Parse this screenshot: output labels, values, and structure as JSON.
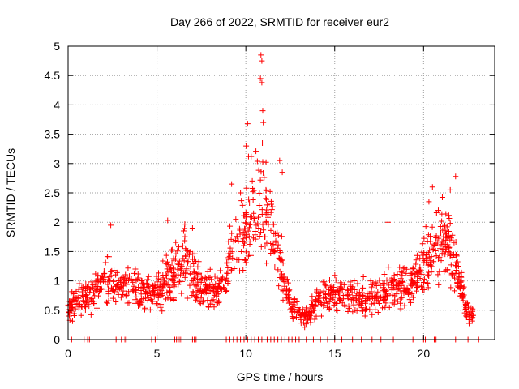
{
  "chart_data": {
    "type": "scatter",
    "title": "Day 266 of 2022, SRMTID for receiver eur2",
    "xlabel": "GPS time / hours",
    "ylabel": "SRMTID / TECUs",
    "xlim": [
      0,
      24
    ],
    "ylim": [
      0,
      5
    ],
    "grid": true,
    "marker": "+",
    "colors": {
      "series": "#ff0000",
      "grid": "#a0a0a0",
      "axis": "#000000"
    },
    "x_ticks": [
      0,
      5,
      10,
      15,
      20
    ],
    "x_tick_labels": [
      "0",
      "5",
      "10",
      "15",
      "20"
    ],
    "y_ticks": [
      0,
      0.5,
      1,
      1.5,
      2,
      2.5,
      3,
      3.5,
      4,
      4.5,
      5
    ],
    "y_tick_labels": [
      "0",
      "0.5",
      "1",
      "1.5",
      "2",
      "2.5",
      "3",
      "3.5",
      "4",
      "4.5",
      "5"
    ],
    "baseline": {
      "x": [
        0.2,
        0.9,
        1.1,
        1.2,
        2.7,
        3.0,
        3.2,
        3.3,
        4.7,
        4.9,
        6.0,
        6.1,
        6.2,
        6.3,
        6.4,
        7.0,
        7.1,
        7.2,
        8.9,
        9.1,
        9.3,
        9.5,
        9.7,
        9.9,
        10.1,
        10.3,
        10.5,
        10.7,
        10.9,
        11.2,
        11.4,
        11.6,
        11.8,
        12.0,
        12.2,
        12.4,
        12.6,
        12.8,
        13.0,
        13.4,
        13.8,
        14.2,
        14.6,
        15.0,
        15.4,
        16.0,
        16.5,
        17.1,
        17.6,
        18.3,
        19.4,
        20.0,
        20.1,
        20.6,
        20.7,
        21.8,
        22.5,
        23.1
      ],
      "y": [
        0,
        0,
        0,
        0,
        0,
        0,
        0,
        0,
        0,
        0,
        0,
        0,
        0,
        0,
        0,
        0,
        0,
        0,
        0,
        0,
        0,
        0,
        0,
        0,
        0,
        0,
        0,
        0,
        0,
        0,
        0,
        0,
        0,
        0,
        0,
        0,
        0,
        0,
        0,
        0,
        0,
        0,
        0,
        0,
        0,
        0,
        0,
        0,
        0,
        0,
        0,
        0,
        0,
        0,
        0,
        0,
        0,
        0
      ]
    },
    "series": [
      {
        "name": "SRMTID eur2",
        "profile_x": [
          0,
          0.5,
          1,
          1.5,
          2,
          2.5,
          3,
          3.5,
          4,
          4.5,
          5,
          5.5,
          6,
          6.5,
          7,
          7.5,
          8,
          8.5,
          9,
          9.5,
          10,
          10.3,
          10.6,
          10.8,
          11,
          11.3,
          11.6,
          12,
          12.5,
          13,
          13.3,
          13.6,
          14,
          14.5,
          15,
          15.5,
          16,
          16.5,
          17,
          17.5,
          18,
          18.5,
          19,
          19.5,
          20,
          20.5,
          21,
          21.5,
          22,
          22.3,
          22.6,
          22.8
        ],
        "profile_y": [
          0.55,
          0.62,
          0.7,
          0.85,
          1.0,
          1.0,
          0.9,
          0.85,
          0.8,
          0.75,
          0.8,
          1.0,
          1.2,
          1.3,
          1.15,
          0.9,
          0.8,
          0.85,
          1.3,
          1.6,
          1.8,
          2.0,
          2.2,
          2.3,
          2.3,
          2.1,
          1.7,
          1.2,
          0.6,
          0.45,
          0.35,
          0.45,
          0.7,
          0.75,
          0.75,
          0.75,
          0.75,
          0.7,
          0.75,
          0.8,
          0.85,
          0.9,
          0.95,
          1.05,
          1.3,
          1.5,
          1.7,
          1.6,
          1.0,
          0.6,
          0.35,
          0.5
        ],
        "highlights": {
          "x": [
            10.85,
            10.9,
            10.82,
            10.9,
            10.95,
            10.98,
            10.93,
            10.1,
            10.02,
            10.15,
            10.3,
            11.9,
            12.05,
            2.4,
            5.6,
            20.5,
            21.8,
            21.5,
            20.3,
            9.2,
            9.7,
            7.0,
            6.5,
            18.0
          ],
          "y": [
            4.85,
            4.75,
            4.45,
            4.38,
            3.9,
            3.7,
            3.35,
            3.68,
            3.3,
            3.12,
            3.12,
            3.05,
            2.85,
            1.95,
            2.03,
            2.6,
            2.78,
            2.55,
            2.35,
            2.65,
            2.5,
            1.9,
            1.85,
            2.0
          ]
        },
        "count": 1350
      }
    ]
  }
}
